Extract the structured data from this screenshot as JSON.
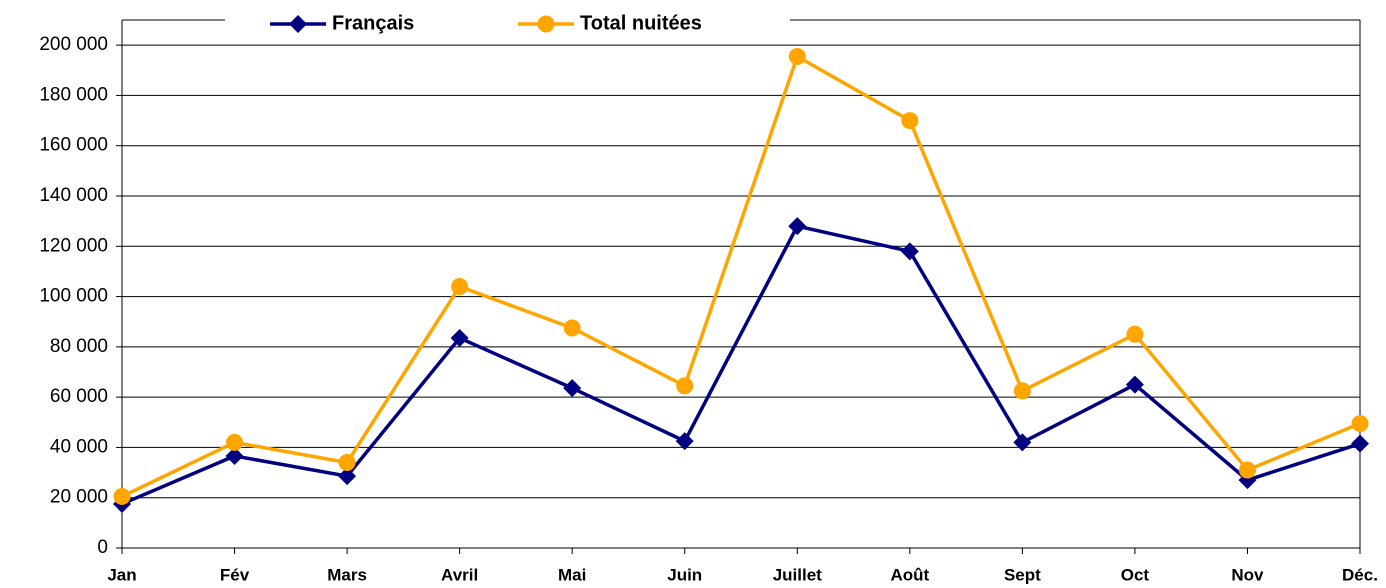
{
  "chart_data": {
    "type": "line",
    "categories": [
      "Jan",
      "Fév",
      "Mars",
      "Avril",
      "Mai",
      "Juin",
      "Juillet",
      "Août",
      "Sept",
      "Oct",
      "Nov",
      "Déc."
    ],
    "series": [
      {
        "name": "Français",
        "color": "#000080",
        "marker": "diamond",
        "values": [
          17500,
          36600,
          28600,
          83500,
          63600,
          42500,
          128000,
          118000,
          42000,
          65000,
          27000,
          41500
        ]
      },
      {
        "name": "Total nuitées",
        "color": "#ffa500",
        "marker": "circle",
        "values": [
          20500,
          42000,
          34000,
          104000,
          87500,
          64500,
          195500,
          170000,
          62500,
          85000,
          31000,
          49500
        ]
      }
    ],
    "ylim": [
      0,
      210000
    ],
    "yticks": [
      {
        "value": 0,
        "label": "0"
      },
      {
        "value": 20000,
        "label": "20 000"
      },
      {
        "value": 40000,
        "label": "40 000"
      },
      {
        "value": 60000,
        "label": "60 000"
      },
      {
        "value": 80000,
        "label": "80 000"
      },
      {
        "value": 100000,
        "label": "100 000"
      },
      {
        "value": 120000,
        "label": "120 000"
      },
      {
        "value": 140000,
        "label": "140 000"
      },
      {
        "value": 160000,
        "label": "160 000"
      },
      {
        "value": 180000,
        "label": "180 000"
      },
      {
        "value": 200000,
        "label": "200 000"
      }
    ],
    "grid": true,
    "legend": "top"
  }
}
